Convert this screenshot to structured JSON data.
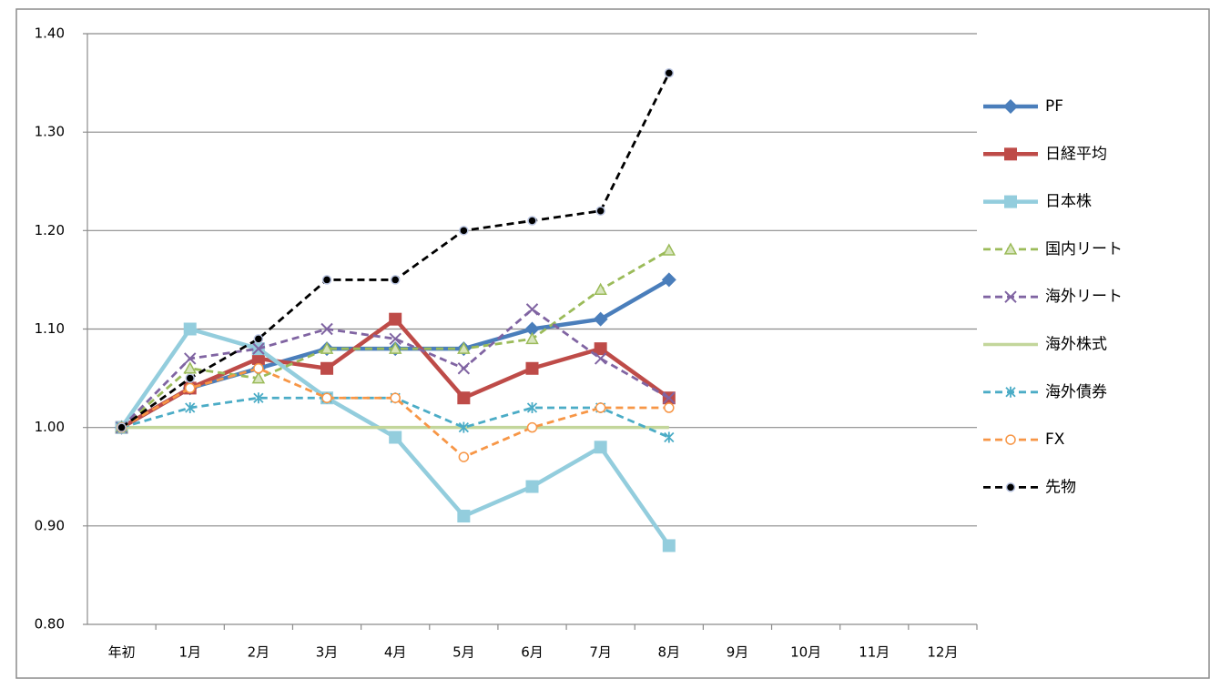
{
  "chart_data": {
    "type": "line",
    "categories": [
      "年初",
      "1月",
      "2月",
      "3月",
      "4月",
      "5月",
      "6月",
      "7月",
      "8月",
      "9月",
      "10月",
      "11月",
      "12月"
    ],
    "ylim": [
      0.8,
      1.4
    ],
    "yticks": [
      {
        "value": 0.8,
        "label": "0.80"
      },
      {
        "value": 0.9,
        "label": "0.90"
      },
      {
        "value": 1.0,
        "label": "1.00"
      },
      {
        "value": 1.1,
        "label": "1.10"
      },
      {
        "value": 1.2,
        "label": "1.20"
      },
      {
        "value": 1.3,
        "label": "1.30"
      },
      {
        "value": 1.4,
        "label": "1.40"
      }
    ],
    "grid": true,
    "legend": "right",
    "series": [
      {
        "name": "PF",
        "color": "#4a7ebb",
        "marker": "diamond",
        "dashed": false,
        "values": [
          1.0,
          1.04,
          1.06,
          1.08,
          1.08,
          1.08,
          1.1,
          1.11,
          1.15,
          null,
          null,
          null,
          null
        ]
      },
      {
        "name": "日経平均",
        "color": "#be4b48",
        "marker": "square",
        "dashed": false,
        "values": [
          1.0,
          1.04,
          1.07,
          1.06,
          1.11,
          1.03,
          1.06,
          1.08,
          1.03,
          null,
          null,
          null,
          null
        ]
      },
      {
        "name": "日本株",
        "color": "#93cddd",
        "marker": "square",
        "dashed": false,
        "values": [
          1.0,
          1.1,
          1.08,
          1.03,
          0.99,
          0.91,
          0.94,
          0.98,
          0.88,
          null,
          null,
          null,
          null
        ]
      },
      {
        "name": "国内リート",
        "color": "#9bbb59",
        "marker": "triangle",
        "dashed": true,
        "values": [
          1.0,
          1.06,
          1.05,
          1.08,
          1.08,
          1.08,
          1.09,
          1.14,
          1.18,
          null,
          null,
          null,
          null
        ]
      },
      {
        "name": "海外リート",
        "color": "#8064a2",
        "marker": "x",
        "dashed": true,
        "values": [
          1.0,
          1.07,
          1.08,
          1.1,
          1.09,
          1.06,
          1.12,
          1.07,
          1.03,
          null,
          null,
          null,
          null
        ]
      },
      {
        "name": "海外株式",
        "color": "#c3d69b",
        "marker": "none",
        "dashed": false,
        "values": [
          1.0,
          1.0,
          1.0,
          1.0,
          1.0,
          1.0,
          1.0,
          1.0,
          1.0,
          null,
          null,
          null,
          null
        ]
      },
      {
        "name": "海外債券",
        "color": "#4bacc6",
        "marker": "star",
        "dashed": true,
        "values": [
          1.0,
          1.02,
          1.03,
          1.03,
          1.03,
          1.0,
          1.02,
          1.02,
          0.99,
          null,
          null,
          null,
          null
        ]
      },
      {
        "name": "FX",
        "color": "#f79646",
        "marker": "circle-open",
        "dashed": true,
        "values": [
          1.0,
          1.04,
          1.06,
          1.03,
          1.03,
          0.97,
          1.0,
          1.02,
          1.02,
          null,
          null,
          null,
          null
        ]
      },
      {
        "name": "先物",
        "color": "#000000",
        "marker": "circle",
        "dashed": true,
        "values": [
          1.0,
          1.05,
          1.09,
          1.15,
          1.15,
          1.2,
          1.21,
          1.22,
          1.36,
          null,
          null,
          null,
          null
        ]
      }
    ]
  }
}
